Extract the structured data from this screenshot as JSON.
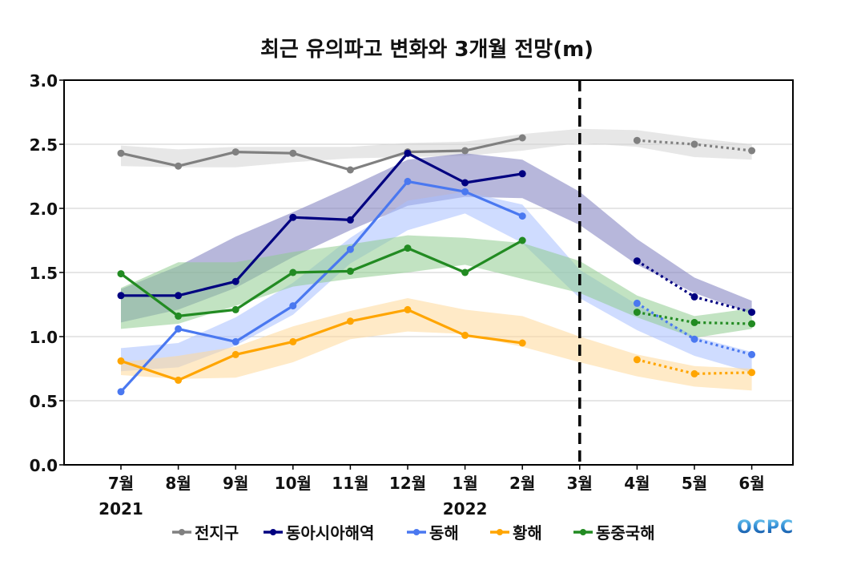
{
  "chart_data": {
    "type": "line",
    "title": "최근 유의파고 변화와 3개월 전망(m)",
    "xlabel": "",
    "ylabel": "",
    "ylim": [
      0,
      3.0
    ],
    "yticks": [
      "0.0",
      "0.5",
      "1.0",
      "1.5",
      "2.0",
      "2.5",
      "3.0"
    ],
    "grid": true,
    "categories": [
      "7월",
      "8월",
      "9월",
      "10월",
      "11월",
      "12월",
      "1월",
      "2월",
      "3월",
      "4월",
      "5월",
      "6월"
    ],
    "year_labels": [
      {
        "category": "7월",
        "label": "2021"
      },
      {
        "category": "1월",
        "label": "2022"
      }
    ],
    "forecast_divider_category": "3월",
    "legend_position": "bottom",
    "series": [
      {
        "name": "전지구",
        "color": "#808080",
        "band_color": "#d3d3d3",
        "observed": [
          2.43,
          2.33,
          2.44,
          2.43,
          2.3,
          2.44,
          2.45,
          2.55,
          null,
          null,
          null,
          null
        ],
        "forecast": [
          null,
          null,
          null,
          null,
          null,
          null,
          null,
          null,
          null,
          2.53,
          2.5,
          2.45
        ],
        "band_lower": [
          2.33,
          2.32,
          2.32,
          2.36,
          2.39,
          2.4,
          2.41,
          2.45,
          2.51,
          2.48,
          2.4,
          2.38
        ],
        "band_upper": [
          2.49,
          2.46,
          2.48,
          2.48,
          2.48,
          2.51,
          2.52,
          2.58,
          2.62,
          2.61,
          2.55,
          2.5
        ]
      },
      {
        "name": "동아시아해역",
        "color": "#000080",
        "band_color": "#7b7bbd",
        "observed": [
          1.32,
          1.32,
          1.43,
          1.93,
          1.91,
          2.43,
          2.2,
          2.27,
          null,
          null,
          null,
          null
        ],
        "forecast": [
          null,
          null,
          null,
          null,
          null,
          null,
          null,
          null,
          null,
          1.59,
          1.31,
          1.19
        ],
        "band_lower": [
          1.11,
          1.21,
          1.38,
          1.62,
          1.83,
          2.02,
          2.09,
          2.08,
          1.87,
          1.56,
          1.34,
          1.18
        ],
        "band_upper": [
          1.37,
          1.55,
          1.78,
          1.97,
          2.17,
          2.38,
          2.43,
          2.38,
          2.13,
          1.76,
          1.46,
          1.28
        ]
      },
      {
        "name": "동해",
        "color": "#4a78f0",
        "band_color": "#a8c0ff",
        "observed": [
          0.57,
          1.06,
          0.96,
          1.24,
          1.68,
          2.21,
          2.13,
          1.94,
          null,
          null,
          null,
          null
        ],
        "forecast": [
          null,
          null,
          null,
          null,
          null,
          null,
          null,
          null,
          null,
          1.26,
          0.98,
          0.86
        ],
        "band_lower": [
          0.73,
          0.76,
          0.93,
          1.17,
          1.57,
          1.83,
          1.96,
          1.73,
          1.3,
          1.05,
          0.85,
          0.72
        ],
        "band_upper": [
          0.91,
          0.95,
          1.15,
          1.42,
          1.77,
          2.06,
          2.13,
          2.03,
          1.52,
          1.25,
          1.0,
          0.88
        ]
      },
      {
        "name": "황해",
        "color": "#ffa500",
        "band_color": "#ffd999",
        "observed": [
          0.81,
          0.66,
          0.86,
          0.96,
          1.12,
          1.21,
          1.01,
          0.95,
          null,
          null,
          null,
          null
        ],
        "forecast": [
          null,
          null,
          null,
          null,
          null,
          null,
          null,
          null,
          null,
          0.82,
          0.71,
          0.72
        ],
        "band_lower": [
          0.7,
          0.67,
          0.68,
          0.8,
          0.98,
          1.04,
          1.02,
          0.92,
          0.8,
          0.69,
          0.61,
          0.58
        ],
        "band_upper": [
          0.8,
          0.85,
          0.92,
          1.08,
          1.2,
          1.3,
          1.21,
          1.16,
          1.0,
          0.86,
          0.77,
          0.75
        ]
      },
      {
        "name": "동중국해",
        "color": "#228b22",
        "band_color": "#8fcc8f",
        "observed": [
          1.49,
          1.16,
          1.21,
          1.5,
          1.51,
          1.69,
          1.5,
          1.75,
          null,
          null,
          null,
          null
        ],
        "forecast": [
          null,
          null,
          null,
          null,
          null,
          null,
          null,
          null,
          null,
          1.19,
          1.11,
          1.1
        ],
        "band_lower": [
          1.06,
          1.1,
          1.24,
          1.39,
          1.45,
          1.5,
          1.56,
          1.45,
          1.34,
          1.15,
          0.99,
          1.06
        ],
        "band_upper": [
          1.38,
          1.58,
          1.58,
          1.66,
          1.72,
          1.79,
          1.77,
          1.73,
          1.59,
          1.32,
          1.16,
          1.22
        ]
      }
    ]
  },
  "logo": {
    "text": "OCPC",
    "color_top": "#4fb3e8",
    "color_bottom": "#0a4fa0"
  }
}
